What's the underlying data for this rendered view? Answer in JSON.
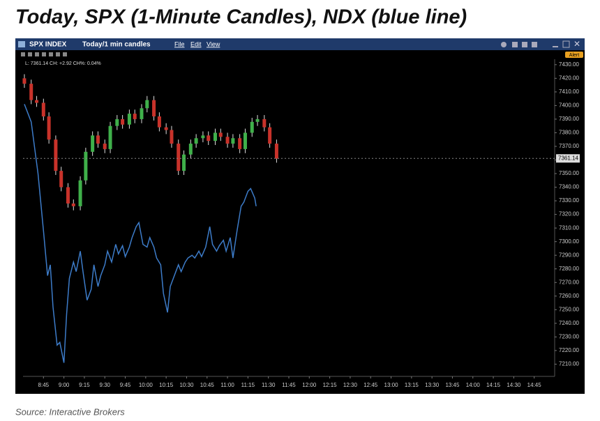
{
  "chart_data": {
    "type": "candlestick",
    "title": "Today, SPX (1-Minute Candles), NDX (blue line)",
    "source": "Source: Interactive Brokers",
    "ui": {
      "symbol": "SPX INDEX",
      "period": "Today/1 min candles",
      "menus": [
        "File",
        "Edit",
        "View"
      ],
      "alert": "Alert",
      "info": "L: 7361.14 CH: +2.92 CH%: 0.04%"
    },
    "last_price": 7361.14,
    "up_color": "#3fb04a",
    "down_color": "#c8322a",
    "x": [
      511,
      516,
      520,
      525,
      529,
      534,
      538,
      543,
      547,
      552,
      556,
      561,
      565,
      570,
      574,
      579,
      583,
      588,
      592,
      597,
      601,
      606,
      610,
      615,
      619,
      624,
      628,
      633,
      637,
      642,
      646,
      651,
      655,
      660,
      664,
      669,
      673,
      678,
      682,
      687,
      691,
      696
    ],
    "open": [
      7420,
      7416,
      7404,
      7402,
      7392,
      7375,
      7352,
      7340,
      7328,
      7326,
      7345,
      7366,
      7378,
      7372,
      7368,
      7385,
      7390,
      7386,
      7394,
      7390,
      7398,
      7404,
      7392,
      7384,
      7382,
      7372,
      7352,
      7364,
      7372,
      7376,
      7378,
      7374,
      7380,
      7377,
      7372,
      7376,
      7368,
      7380,
      7388,
      7390,
      7384,
      7372
    ],
    "high": [
      7423,
      7419,
      7407,
      7405,
      7395,
      7378,
      7355,
      7343,
      7331,
      7348,
      7369,
      7381,
      7381,
      7375,
      7388,
      7393,
      7393,
      7397,
      7397,
      7401,
      7407,
      7407,
      7395,
      7387,
      7385,
      7375,
      7367,
      7375,
      7379,
      7381,
      7381,
      7383,
      7383,
      7380,
      7379,
      7379,
      7383,
      7391,
      7393,
      7393,
      7387,
      7375
    ],
    "low": [
      7413,
      7401,
      7399,
      7389,
      7372,
      7349,
      7337,
      7325,
      7323,
      7323,
      7342,
      7363,
      7369,
      7365,
      7365,
      7382,
      7383,
      7383,
      7387,
      7387,
      7395,
      7389,
      7381,
      7379,
      7369,
      7349,
      7349,
      7361,
      7369,
      7373,
      7371,
      7371,
      7374,
      7369,
      7369,
      7365,
      7365,
      7377,
      7385,
      7381,
      7369,
      7358
    ],
    "close": [
      7416,
      7404,
      7402,
      7392,
      7375,
      7352,
      7340,
      7328,
      7326,
      7345,
      7366,
      7378,
      7372,
      7368,
      7385,
      7390,
      7386,
      7394,
      7390,
      7398,
      7404,
      7392,
      7384,
      7382,
      7372,
      7352,
      7364,
      7372,
      7376,
      7378,
      7374,
      7380,
      7377,
      7372,
      7376,
      7368,
      7380,
      7388,
      7390,
      7384,
      7372,
      7361
    ],
    "series": [
      {
        "type": "line",
        "color": "#3d7cc9",
        "x": [
          511,
          516,
          521,
          525,
          528,
          530,
          532,
          535,
          537,
          540,
          542,
          544,
          547,
          549,
          552,
          554,
          557,
          560,
          562,
          565,
          567,
          570,
          572,
          575,
          578,
          580,
          583,
          585,
          588,
          590,
          593,
          595,
          598,
          601,
          603,
          606,
          608,
          611,
          613,
          616,
          618,
          621,
          624,
          626,
          629,
          631,
          634,
          636,
          639,
          641,
          644,
          647,
          649,
          652,
          654,
          657,
          659,
          662,
          664,
          667,
          670,
          672,
          675,
          677,
          680,
          681
        ],
        "values": [
          7401,
          7388,
          7350,
          7308,
          7275,
          7283,
          7252,
          7224,
          7226,
          7211,
          7247,
          7273,
          7285,
          7278,
          7293,
          7278,
          7257,
          7265,
          7283,
          7267,
          7275,
          7283,
          7293,
          7285,
          7298,
          7291,
          7297,
          7289,
          7296,
          7303,
          7311,
          7314,
          7298,
          7296,
          7303,
          7296,
          7288,
          7283,
          7262,
          7248,
          7267,
          7275,
          7283,
          7278,
          7285,
          7288,
          7290,
          7288,
          7293,
          7289,
          7296,
          7311,
          7298,
          7293,
          7297,
          7301,
          7293,
          7303,
          7288,
          7308,
          7326,
          7329,
          7337,
          7339,
          7332,
          7326
        ]
      }
    ],
    "xlim": [
      510,
      900
    ],
    "xticks": [
      {
        "value": 525,
        "label": "8:45"
      },
      {
        "value": 540,
        "label": "9:00"
      },
      {
        "value": 555,
        "label": "9:15"
      },
      {
        "value": 570,
        "label": "9:30"
      },
      {
        "value": 585,
        "label": "9:45"
      },
      {
        "value": 600,
        "label": "10:00"
      },
      {
        "value": 615,
        "label": "10:15"
      },
      {
        "value": 630,
        "label": "10:30"
      },
      {
        "value": 645,
        "label": "10:45"
      },
      {
        "value": 660,
        "label": "11:00"
      },
      {
        "value": 675,
        "label": "11:15"
      },
      {
        "value": 690,
        "label": "11:30"
      },
      {
        "value": 705,
        "label": "11:45"
      },
      {
        "value": 720,
        "label": "12:00"
      },
      {
        "value": 735,
        "label": "12:15"
      },
      {
        "value": 750,
        "label": "12:30"
      },
      {
        "value": 765,
        "label": "12:45"
      },
      {
        "value": 780,
        "label": "13:00"
      },
      {
        "value": 795,
        "label": "13:15"
      },
      {
        "value": 810,
        "label": "13:30"
      },
      {
        "value": 825,
        "label": "13:45"
      },
      {
        "value": 840,
        "label": "14:00"
      },
      {
        "value": 855,
        "label": "14:15"
      },
      {
        "value": 870,
        "label": "14:30"
      },
      {
        "value": 885,
        "label": "14:45"
      }
    ],
    "ylim": [
      7201,
      7434
    ],
    "yticks": [
      {
        "value": 7430,
        "label": "7430.00"
      },
      {
        "value": 7420,
        "label": "7420.00"
      },
      {
        "value": 7410,
        "label": "7410.00"
      },
      {
        "value": 7400,
        "label": "7400.00"
      },
      {
        "value": 7390,
        "label": "7390.00"
      },
      {
        "value": 7380,
        "label": "7380.00"
      },
      {
        "value": 7370,
        "label": "7370.00"
      },
      {
        "value": 7360,
        "label": "7360.00"
      },
      {
        "value": 7350,
        "label": "7350.00"
      },
      {
        "value": 7340,
        "label": "7340.00"
      },
      {
        "value": 7330,
        "label": "7330.00"
      },
      {
        "value": 7320,
        "label": "7320.00"
      },
      {
        "value": 7310,
        "label": "7310.00"
      },
      {
        "value": 7300,
        "label": "7300.00"
      },
      {
        "value": 7290,
        "label": "7290.00"
      },
      {
        "value": 7280,
        "label": "7280.00"
      },
      {
        "value": 7270,
        "label": "7270.00"
      },
      {
        "value": 7260,
        "label": "7260.00"
      },
      {
        "value": 7250,
        "label": "7250.00"
      },
      {
        "value": 7240,
        "label": "7240.00"
      },
      {
        "value": 7230,
        "label": "7230.00"
      },
      {
        "value": 7220,
        "label": "7220.00"
      },
      {
        "value": 7210,
        "label": "7210.00"
      }
    ]
  }
}
